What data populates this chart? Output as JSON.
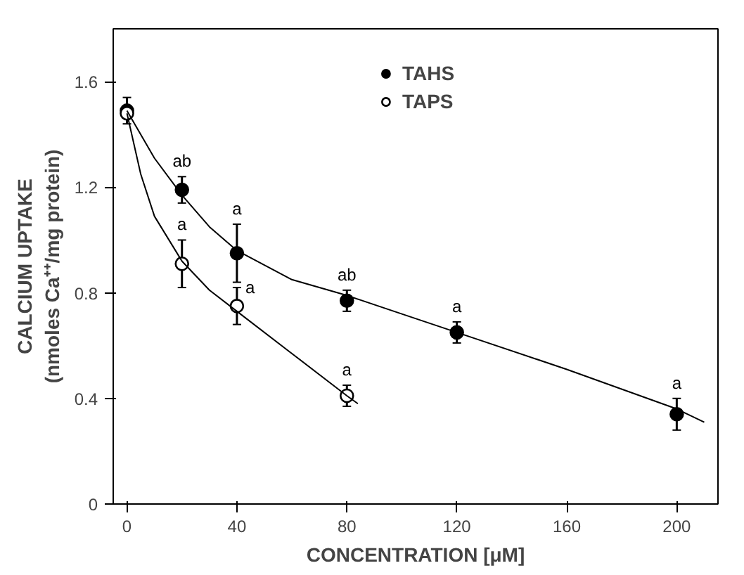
{
  "chart_data": {
    "type": "scatter",
    "xlabel": "CONCENTRATION [μM]",
    "ylabel": "CALCIUM UPTAKE\n(nmoles Ca⁺⁺/mg protein)",
    "xlim": [
      -5,
      215
    ],
    "ylim": [
      0,
      1.8
    ],
    "xticks": [
      0,
      40,
      80,
      120,
      160,
      200
    ],
    "yticks": [
      0,
      0.4,
      0.8,
      1.2,
      1.6
    ],
    "legend": "top",
    "series": [
      {
        "name": "TAHS",
        "color": "#000000",
        "marker": "circle",
        "x": [
          0,
          20,
          40,
          80,
          120,
          200
        ],
        "values": [
          1.49,
          1.19,
          0.95,
          0.77,
          0.65,
          0.34
        ],
        "errors": [
          0.05,
          0.05,
          0.11,
          0.04,
          0.04,
          0.06
        ]
      },
      {
        "name": "TAPS",
        "color": "#ffffff",
        "marker": "circle",
        "x": [
          0,
          20,
          40,
          80
        ],
        "values": [
          1.48,
          0.91,
          0.75,
          0.41
        ],
        "errors": [
          null,
          0.09,
          0.07,
          0.04
        ]
      },
      {
        "type": "line",
        "color": "#000000",
        "x": [
          0,
          10,
          20,
          30,
          40,
          60,
          80,
          100,
          120,
          160,
          200,
          210
        ],
        "values": [
          1.49,
          1.31,
          1.17,
          1.05,
          0.96,
          0.85,
          0.79,
          0.72,
          0.65,
          0.51,
          0.36,
          0.31
        ]
      },
      {
        "type": "line",
        "color": "#000000",
        "x": [
          0,
          5,
          10,
          20,
          30,
          40,
          60,
          80,
          84
        ],
        "values": [
          1.48,
          1.25,
          1.09,
          0.92,
          0.81,
          0.73,
          0.57,
          0.41,
          0.38
        ]
      }
    ],
    "annotations": [
      {
        "text": "ab",
        "x": 20,
        "y": 1.19
      },
      {
        "text": "a",
        "x": 40,
        "y": 0.95
      },
      {
        "text": "ab",
        "x": 80,
        "y": 0.77
      },
      {
        "text": "a",
        "x": 120,
        "y": 0.65
      },
      {
        "text": "a",
        "x": 200,
        "y": 0.34
      },
      {
        "text": "a",
        "x": 20,
        "y": 0.91
      },
      {
        "text": "a",
        "x": 40,
        "y": 0.75
      },
      {
        "text": "a",
        "x": 80,
        "y": 0.41
      }
    ]
  }
}
